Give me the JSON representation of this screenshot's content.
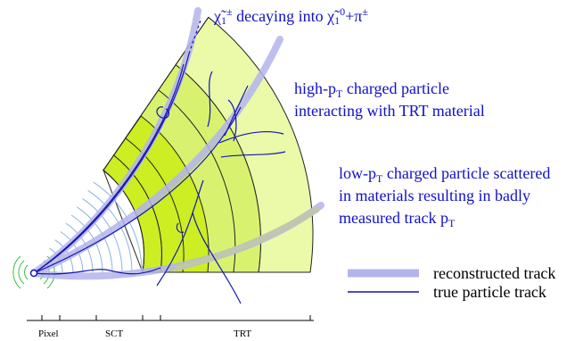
{
  "labels": {
    "chargino": {
      "symbol1": "χ̃",
      "idx1": "1",
      "sup1": "±",
      "mid": " decaying into ",
      "symbol2": "χ̃",
      "idx2": "1",
      "sup2": "0",
      "tail": "+π",
      "sup3": "±"
    },
    "high_pt": {
      "line1_a": "high-p",
      "line1_sub": "T",
      "line1_b": " charged particle",
      "line2": "interacting with TRT material"
    },
    "low_pt": {
      "line1_a": "low-p",
      "line1_sub": "T",
      "line1_b": " charged particle scattered",
      "line2": "in materials resulting in badly",
      "line3_a": "measured track p",
      "line3_sub": "T"
    }
  },
  "legend": {
    "reconstructed": "reconstructed track",
    "true": "true particle track"
  },
  "axis": {
    "pixel": "Pixel",
    "sct": "SCT",
    "trt": "TRT"
  },
  "colors": {
    "label_text": "#1010c8",
    "reco_track": "#b4b4ec",
    "true_track": "#1414b4",
    "pixel_rings": "#38c038",
    "sct_rings": "#8cb4e0",
    "sct_fill": "#ccee22",
    "trt_inner_fill": "#d8f270",
    "trt_outer_fill": "#eafaa8",
    "scatter_track": "#c0c8a8"
  }
}
